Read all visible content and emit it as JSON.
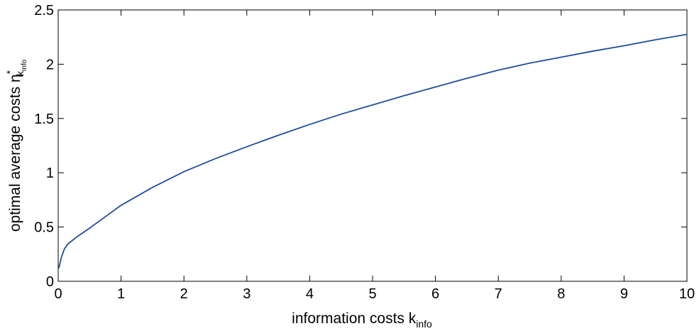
{
  "chart_data": {
    "type": "line",
    "title": "",
    "xlabel": "information costs k",
    "xlabel_subscript": "info",
    "ylabel": "optimal average costs η",
    "ylabel_superscript": "*",
    "ylabel_subscript_k": "k",
    "ylabel_subscript_info": "info",
    "xlim": [
      0,
      10
    ],
    "ylim": [
      0,
      2.5
    ],
    "xticks": [
      0,
      1,
      2,
      3,
      4,
      5,
      6,
      7,
      8,
      9,
      10
    ],
    "xtick_labels": [
      "0",
      "1",
      "2",
      "3",
      "4",
      "5",
      "6",
      "7",
      "8",
      "9",
      "10"
    ],
    "yticks": [
      0,
      0.5,
      1,
      1.5,
      2,
      2.5
    ],
    "ytick_labels": [
      "0",
      "0.5",
      "1",
      "1.5",
      "2",
      "2.5"
    ],
    "grid": false,
    "line_color": "#1f4e9c",
    "series": [
      {
        "x": [
          0.01,
          0.05,
          0.1,
          0.15,
          0.2,
          0.3,
          0.5,
          0.75,
          1,
          1.5,
          2,
          2.5,
          3,
          3.5,
          4,
          4.5,
          5,
          5.5,
          6,
          6.5,
          7,
          7.5,
          8,
          8.5,
          9,
          9.5,
          10
        ],
        "values": [
          0.12,
          0.22,
          0.3,
          0.34,
          0.365,
          0.41,
          0.49,
          0.595,
          0.7,
          0.865,
          1.01,
          1.13,
          1.24,
          1.345,
          1.445,
          1.54,
          1.625,
          1.71,
          1.79,
          1.87,
          1.945,
          2.01,
          2.065,
          2.12,
          2.17,
          2.225,
          2.275
        ]
      }
    ]
  }
}
